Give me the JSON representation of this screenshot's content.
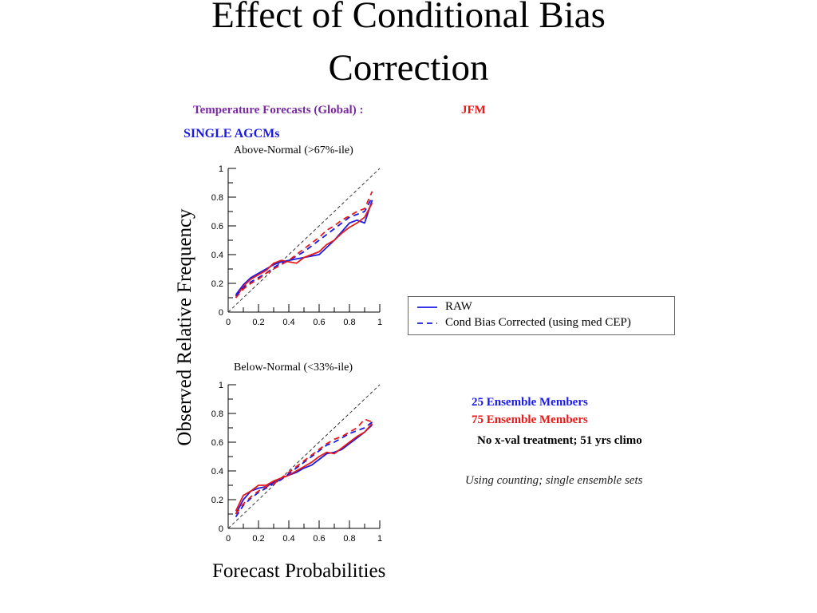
{
  "slide": {
    "title_line1": "Effect  of Conditional Bias",
    "title_line2": "Correction",
    "header_left": "Temperature Forecasts (Global) :",
    "header_right": "JFM",
    "subheader": "SINGLE AGCMs",
    "y_axis_label": "Observed Relative Frequency",
    "x_axis_label": "Forecast Probabilities",
    "legend": {
      "raw": "RAW",
      "corrected": "Cond Bias Corrected (using med CEP)"
    },
    "notes": {
      "members_25": "25 Ensemble Members",
      "members_75": "75 Ensemble Members",
      "xval": "No x-val treatment; 51 yrs climo",
      "method": "Using counting; single ensemble sets"
    }
  },
  "colors": {
    "purple": "#7a2aa0",
    "blue": "#1a1ae6",
    "red": "#e61a1a",
    "diag": "#333333"
  },
  "chart_data": [
    {
      "type": "line",
      "title": "Above-Normal (>67%-ile)",
      "xlim": [
        0,
        1
      ],
      "ylim": [
        0,
        1
      ],
      "x_ticks": [
        "0",
        "0.2",
        "0.4",
        "0.6",
        "0.8",
        "1"
      ],
      "y_ticks": [
        "0",
        "0.2",
        "0.4",
        "0.6",
        "0.8",
        "1"
      ],
      "series": [
        {
          "name": "RAW",
          "members": 25,
          "color": "#1a1ae6",
          "dash": false,
          "x": [
            0.05,
            0.1,
            0.15,
            0.2,
            0.25,
            0.3,
            0.35,
            0.4,
            0.45,
            0.5,
            0.55,
            0.6,
            0.65,
            0.7,
            0.75,
            0.8,
            0.85,
            0.9,
            0.95
          ],
          "y": [
            0.12,
            0.19,
            0.24,
            0.27,
            0.3,
            0.33,
            0.35,
            0.36,
            0.37,
            0.38,
            0.39,
            0.4,
            0.45,
            0.5,
            0.56,
            0.62,
            0.64,
            0.62,
            0.78
          ]
        },
        {
          "name": "RAW",
          "members": 75,
          "color": "#e61a1a",
          "dash": false,
          "x": [
            0.05,
            0.1,
            0.15,
            0.2,
            0.25,
            0.3,
            0.35,
            0.4,
            0.45,
            0.5,
            0.55,
            0.6,
            0.65,
            0.7,
            0.75,
            0.8,
            0.85,
            0.9,
            0.95
          ],
          "y": [
            0.1,
            0.18,
            0.23,
            0.26,
            0.29,
            0.34,
            0.36,
            0.35,
            0.34,
            0.38,
            0.4,
            0.42,
            0.47,
            0.5,
            0.55,
            0.59,
            0.62,
            0.66,
            0.76
          ]
        },
        {
          "name": "Cond Bias Corrected (using med CEP)",
          "members": 25,
          "color": "#1a1ae6",
          "dash": true,
          "x": [
            0.05,
            0.1,
            0.15,
            0.2,
            0.25,
            0.3,
            0.35,
            0.4,
            0.45,
            0.5,
            0.55,
            0.6,
            0.65,
            0.7,
            0.75,
            0.8,
            0.85,
            0.9,
            0.95
          ],
          "y": [
            0.11,
            0.17,
            0.21,
            0.24,
            0.27,
            0.31,
            0.34,
            0.36,
            0.39,
            0.42,
            0.46,
            0.5,
            0.54,
            0.58,
            0.62,
            0.66,
            0.68,
            0.7,
            0.8
          ]
        },
        {
          "name": "Cond Bias Corrected (using med CEP)",
          "members": 75,
          "color": "#e61a1a",
          "dash": true,
          "x": [
            0.05,
            0.1,
            0.15,
            0.2,
            0.25,
            0.3,
            0.35,
            0.4,
            0.45,
            0.5,
            0.55,
            0.6,
            0.65,
            0.7,
            0.75,
            0.8,
            0.85,
            0.9,
            0.95
          ],
          "y": [
            0.1,
            0.16,
            0.2,
            0.23,
            0.27,
            0.3,
            0.33,
            0.36,
            0.4,
            0.44,
            0.48,
            0.52,
            0.57,
            0.6,
            0.64,
            0.67,
            0.7,
            0.72,
            0.84
          ]
        }
      ]
    },
    {
      "type": "line",
      "title": "Below-Normal (<33%-ile)",
      "xlim": [
        0,
        1
      ],
      "ylim": [
        0,
        1
      ],
      "x_ticks": [
        "0",
        "0.2",
        "0.4",
        "0.6",
        "0.8",
        "1"
      ],
      "y_ticks": [
        "0",
        "0.2",
        "0.4",
        "0.6",
        "0.8",
        "1"
      ],
      "series": [
        {
          "name": "RAW",
          "members": 25,
          "color": "#1a1ae6",
          "dash": false,
          "x": [
            0.05,
            0.1,
            0.15,
            0.2,
            0.25,
            0.3,
            0.35,
            0.4,
            0.45,
            0.5,
            0.55,
            0.6,
            0.65,
            0.7,
            0.75,
            0.8,
            0.85,
            0.9,
            0.95
          ],
          "y": [
            0.1,
            0.2,
            0.26,
            0.28,
            0.29,
            0.32,
            0.35,
            0.37,
            0.39,
            0.42,
            0.44,
            0.48,
            0.52,
            0.53,
            0.55,
            0.59,
            0.63,
            0.67,
            0.72
          ]
        },
        {
          "name": "RAW",
          "members": 75,
          "color": "#e61a1a",
          "dash": false,
          "x": [
            0.05,
            0.1,
            0.15,
            0.2,
            0.25,
            0.3,
            0.35,
            0.4,
            0.45,
            0.5,
            0.55,
            0.6,
            0.65,
            0.7,
            0.75,
            0.8,
            0.85,
            0.9,
            0.95
          ],
          "y": [
            0.12,
            0.23,
            0.26,
            0.3,
            0.3,
            0.33,
            0.35,
            0.37,
            0.4,
            0.43,
            0.46,
            0.5,
            0.53,
            0.52,
            0.56,
            0.6,
            0.64,
            0.67,
            0.73
          ]
        },
        {
          "name": "Cond Bias Corrected (using med CEP)",
          "members": 25,
          "color": "#1a1ae6",
          "dash": true,
          "x": [
            0.05,
            0.1,
            0.15,
            0.2,
            0.25,
            0.3,
            0.35,
            0.4,
            0.45,
            0.5,
            0.55,
            0.6,
            0.65,
            0.7,
            0.75,
            0.8,
            0.85,
            0.9,
            0.95
          ],
          "y": [
            0.08,
            0.16,
            0.21,
            0.25,
            0.28,
            0.31,
            0.34,
            0.38,
            0.42,
            0.46,
            0.5,
            0.54,
            0.58,
            0.6,
            0.63,
            0.66,
            0.68,
            0.7,
            0.74
          ]
        },
        {
          "name": "Cond Bias Corrected (using med CEP)",
          "members": 75,
          "color": "#e61a1a",
          "dash": true,
          "x": [
            0.05,
            0.1,
            0.15,
            0.2,
            0.25,
            0.3,
            0.35,
            0.4,
            0.45,
            0.5,
            0.55,
            0.6,
            0.65,
            0.7,
            0.75,
            0.8,
            0.85,
            0.9,
            0.95
          ],
          "y": [
            0.1,
            0.17,
            0.22,
            0.26,
            0.29,
            0.31,
            0.35,
            0.39,
            0.43,
            0.47,
            0.51,
            0.55,
            0.59,
            0.62,
            0.64,
            0.67,
            0.7,
            0.76,
            0.74
          ]
        }
      ]
    }
  ]
}
